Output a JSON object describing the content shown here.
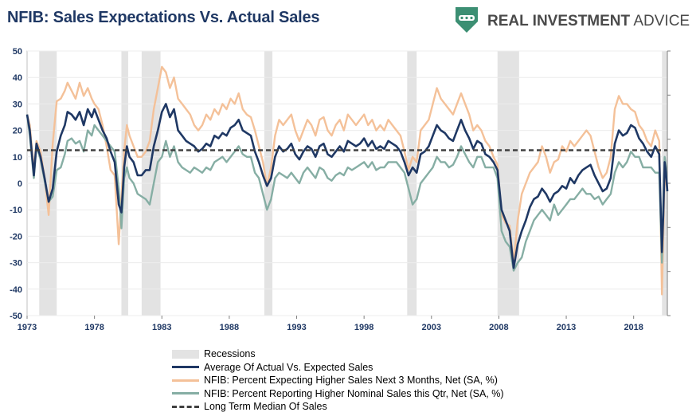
{
  "header": {
    "title": "NFIB: Sales Expectations Vs. Actual Sales",
    "brand_text": "REAL INVESTMENT ADVICE",
    "brand_color": "#3c8f73"
  },
  "chart_data": {
    "type": "line",
    "title": "NFIB: Sales Expectations Vs. Actual Sales",
    "xlabel": "",
    "ylabel": "",
    "xlim": [
      1973,
      2020.5
    ],
    "ylim": [
      -50,
      50
    ],
    "x_ticks": [
      "1973",
      "1978",
      "1983",
      "1988",
      "1993",
      "1998",
      "2003",
      "2008",
      "2013",
      "2018"
    ],
    "x_tick_values": [
      1973,
      1978,
      1983,
      1988,
      1993,
      1998,
      2003,
      2008,
      2013,
      2018
    ],
    "y_ticks": [
      "50",
      "40",
      "30",
      "20",
      "10",
      "0",
      "-10",
      "-20",
      "-30",
      "-40",
      "-50"
    ],
    "y_tick_values": [
      50,
      40,
      30,
      20,
      10,
      0,
      -10,
      -20,
      -30,
      -40,
      -50
    ],
    "grid": true,
    "legend_position": "bottom",
    "recessions": [
      [
        1973.9,
        1975.2
      ],
      [
        1980.0,
        1980.5
      ],
      [
        1981.5,
        1982.9
      ],
      [
        1990.6,
        1991.2
      ],
      [
        2001.2,
        2001.9
      ],
      [
        2007.9,
        2009.5
      ],
      [
        2020.1,
        2020.5
      ]
    ],
    "recessions_label": "Recessions",
    "median": {
      "name": "Long Term Median Of Sales",
      "value": 12.5
    },
    "series": [
      {
        "name": "Average Of Actual Vs. Expected Sales",
        "color": "#1f3864",
        "x": [
          1973.0,
          1973.2,
          1973.5,
          1973.7,
          1974.0,
          1974.3,
          1974.6,
          1974.9,
          1975.2,
          1975.5,
          1975.8,
          1976.0,
          1976.3,
          1976.6,
          1976.9,
          1977.2,
          1977.5,
          1977.8,
          1978.0,
          1978.3,
          1978.6,
          1978.9,
          1979.2,
          1979.5,
          1979.8,
          1980.0,
          1980.2,
          1980.4,
          1980.6,
          1980.9,
          1981.2,
          1981.5,
          1981.8,
          1982.1,
          1982.4,
          1982.7,
          1983.0,
          1983.3,
          1983.6,
          1983.9,
          1984.2,
          1984.5,
          1984.8,
          1985.1,
          1985.4,
          1985.7,
          1986.0,
          1986.3,
          1986.6,
          1986.9,
          1987.2,
          1987.5,
          1987.8,
          1988.1,
          1988.4,
          1988.7,
          1989.0,
          1989.3,
          1989.6,
          1989.9,
          1990.2,
          1990.5,
          1990.8,
          1991.1,
          1991.4,
          1991.7,
          1992.0,
          1992.3,
          1992.6,
          1992.9,
          1993.2,
          1993.5,
          1993.8,
          1994.1,
          1994.4,
          1994.7,
          1995.0,
          1995.3,
          1995.6,
          1995.9,
          1996.2,
          1996.5,
          1996.8,
          1997.1,
          1997.4,
          1997.7,
          1998.0,
          1998.3,
          1998.6,
          1998.9,
          1999.2,
          1999.5,
          1999.8,
          2000.1,
          2000.4,
          2000.7,
          2001.0,
          2001.3,
          2001.6,
          2001.9,
          2002.2,
          2002.5,
          2002.8,
          2003.1,
          2003.4,
          2003.7,
          2004.0,
          2004.3,
          2004.6,
          2004.9,
          2005.2,
          2005.5,
          2005.8,
          2006.1,
          2006.4,
          2006.7,
          2007.0,
          2007.3,
          2007.6,
          2007.9,
          2008.2,
          2008.5,
          2008.8,
          2009.1,
          2009.4,
          2009.7,
          2010.0,
          2010.3,
          2010.6,
          2010.9,
          2011.2,
          2011.5,
          2011.8,
          2012.1,
          2012.4,
          2012.7,
          2013.0,
          2013.3,
          2013.6,
          2013.9,
          2014.2,
          2014.5,
          2014.8,
          2015.1,
          2015.4,
          2015.7,
          2016.0,
          2016.3,
          2016.6,
          2016.9,
          2017.2,
          2017.5,
          2017.8,
          2018.1,
          2018.4,
          2018.7,
          2019.0,
          2019.3,
          2019.6,
          2019.9,
          2020.1,
          2020.2,
          2020.3,
          2020.4,
          2020.5
        ],
        "values": [
          26,
          20,
          3,
          15,
          10,
          2,
          -7,
          -2,
          12,
          18,
          22,
          27,
          26,
          24,
          27,
          22,
          28,
          25,
          28,
          24,
          20,
          17,
          12,
          8,
          -8,
          -11,
          6,
          14,
          10,
          8,
          3,
          3,
          5,
          5,
          14,
          20,
          27,
          30,
          25,
          28,
          20,
          18,
          16,
          15,
          14,
          12,
          13,
          15,
          14,
          18,
          17,
          19,
          18,
          21,
          22,
          24,
          20,
          19,
          18,
          12,
          8,
          3,
          -1,
          2,
          10,
          14,
          12,
          13,
          15,
          11,
          9,
          12,
          14,
          13,
          10,
          14,
          15,
          11,
          10,
          12,
          14,
          12,
          16,
          15,
          14,
          15,
          17,
          14,
          16,
          13,
          14,
          13,
          16,
          15,
          14,
          12,
          8,
          3,
          6,
          4,
          11,
          12,
          14,
          18,
          22,
          20,
          19,
          17,
          16,
          20,
          24,
          20,
          17,
          13,
          16,
          15,
          11,
          10,
          8,
          5,
          -10,
          -14,
          -18,
          -32,
          -23,
          -18,
          -14,
          -9,
          -6,
          -5,
          -2,
          -4,
          -7,
          -4,
          -3,
          -1,
          -2,
          2,
          0,
          3,
          5,
          6,
          7,
          3,
          0,
          -3,
          -2,
          2,
          15,
          20,
          18,
          19,
          22,
          21,
          17,
          15,
          12,
          10,
          14,
          11,
          -26,
          -12,
          8,
          4,
          -3
        ]
      },
      {
        "name": "NFIB: Percent Expecting Higher Sales Next 3 Months, Net (SA, %)",
        "color": "#f4c199",
        "x": [
          1973.0,
          1973.2,
          1973.5,
          1973.7,
          1974.0,
          1974.3,
          1974.6,
          1974.9,
          1975.2,
          1975.5,
          1975.8,
          1976.0,
          1976.3,
          1976.6,
          1976.9,
          1977.2,
          1977.5,
          1977.8,
          1978.0,
          1978.3,
          1978.6,
          1978.9,
          1979.2,
          1979.5,
          1979.8,
          1980.0,
          1980.2,
          1980.4,
          1980.6,
          1980.9,
          1981.2,
          1981.5,
          1981.8,
          1982.1,
          1982.4,
          1982.7,
          1983.0,
          1983.3,
          1983.6,
          1983.9,
          1984.2,
          1984.5,
          1984.8,
          1985.1,
          1985.4,
          1985.7,
          1986.0,
          1986.3,
          1986.6,
          1986.9,
          1987.2,
          1987.5,
          1987.8,
          1988.1,
          1988.4,
          1988.7,
          1989.0,
          1989.3,
          1989.6,
          1989.9,
          1990.2,
          1990.5,
          1990.8,
          1991.1,
          1991.4,
          1991.7,
          1992.0,
          1992.3,
          1992.6,
          1992.9,
          1993.2,
          1993.5,
          1993.8,
          1994.1,
          1994.4,
          1994.7,
          1995.0,
          1995.3,
          1995.6,
          1995.9,
          1996.2,
          1996.5,
          1996.8,
          1997.1,
          1997.4,
          1997.7,
          1998.0,
          1998.3,
          1998.6,
          1998.9,
          1999.2,
          1999.5,
          1999.8,
          2000.1,
          2000.4,
          2000.7,
          2001.0,
          2001.3,
          2001.6,
          2001.9,
          2002.2,
          2002.5,
          2002.8,
          2003.1,
          2003.4,
          2003.7,
          2004.0,
          2004.3,
          2004.6,
          2004.9,
          2005.2,
          2005.5,
          2005.8,
          2006.1,
          2006.4,
          2006.7,
          2007.0,
          2007.3,
          2007.6,
          2007.9,
          2008.2,
          2008.5,
          2008.8,
          2009.1,
          2009.4,
          2009.7,
          2010.0,
          2010.3,
          2010.6,
          2010.9,
          2011.2,
          2011.5,
          2011.8,
          2012.1,
          2012.4,
          2012.7,
          2013.0,
          2013.3,
          2013.6,
          2013.9,
          2014.2,
          2014.5,
          2014.8,
          2015.1,
          2015.4,
          2015.7,
          2016.0,
          2016.3,
          2016.6,
          2016.9,
          2017.2,
          2017.5,
          2017.8,
          2018.1,
          2018.4,
          2018.7,
          2019.0,
          2019.3,
          2019.6,
          2019.9,
          2020.1,
          2020.2,
          2020.3,
          2020.4,
          2020.5
        ],
        "values": [
          26,
          22,
          5,
          16,
          12,
          2,
          -12,
          15,
          31,
          32,
          35,
          38,
          35,
          32,
          38,
          33,
          36,
          32,
          30,
          28,
          22,
          14,
          5,
          3,
          -23,
          -5,
          12,
          22,
          18,
          14,
          10,
          10,
          12,
          16,
          28,
          36,
          44,
          42,
          36,
          40,
          32,
          30,
          28,
          26,
          22,
          20,
          22,
          26,
          24,
          28,
          26,
          30,
          28,
          32,
          30,
          34,
          28,
          26,
          25,
          20,
          14,
          8,
          -1,
          6,
          18,
          24,
          22,
          24,
          26,
          20,
          16,
          20,
          24,
          22,
          18,
          24,
          25,
          20,
          18,
          22,
          24,
          20,
          26,
          24,
          22,
          24,
          26,
          22,
          24,
          20,
          22,
          20,
          24,
          22,
          20,
          18,
          12,
          5,
          10,
          8,
          20,
          22,
          24,
          30,
          36,
          32,
          30,
          28,
          26,
          30,
          34,
          30,
          26,
          20,
          22,
          20,
          16,
          14,
          10,
          7,
          -12,
          -15,
          -16,
          -30,
          -14,
          -4,
          0,
          4,
          6,
          8,
          14,
          10,
          4,
          8,
          9,
          14,
          12,
          16,
          14,
          16,
          18,
          20,
          18,
          12,
          6,
          2,
          4,
          10,
          28,
          33,
          30,
          30,
          28,
          27,
          22,
          20,
          16,
          14,
          20,
          16,
          -42,
          -20,
          6,
          0,
          -2
        ]
      },
      {
        "name": "NFIB: Percent Reporting Higher Nominal Sales this Qtr, Net (SA, %)",
        "color": "#86aea4",
        "x": [
          1973.0,
          1973.2,
          1973.5,
          1973.7,
          1974.0,
          1974.3,
          1974.6,
          1974.9,
          1975.2,
          1975.5,
          1975.8,
          1976.0,
          1976.3,
          1976.6,
          1976.9,
          1977.2,
          1977.5,
          1977.8,
          1978.0,
          1978.3,
          1978.6,
          1978.9,
          1979.2,
          1979.5,
          1979.8,
          1980.0,
          1980.2,
          1980.4,
          1980.6,
          1980.9,
          1981.2,
          1981.5,
          1981.8,
          1982.1,
          1982.4,
          1982.7,
          1983.0,
          1983.3,
          1983.6,
          1983.9,
          1984.2,
          1984.5,
          1984.8,
          1985.1,
          1985.4,
          1985.7,
          1986.0,
          1986.3,
          1986.6,
          1986.9,
          1987.2,
          1987.5,
          1987.8,
          1988.1,
          1988.4,
          1988.7,
          1989.0,
          1989.3,
          1989.6,
          1989.9,
          1990.2,
          1990.5,
          1990.8,
          1991.1,
          1991.4,
          1991.7,
          1992.0,
          1992.3,
          1992.6,
          1992.9,
          1993.2,
          1993.5,
          1993.8,
          1994.1,
          1994.4,
          1994.7,
          1995.0,
          1995.3,
          1995.6,
          1995.9,
          1996.2,
          1996.5,
          1996.8,
          1997.1,
          1997.4,
          1997.7,
          1998.0,
          1998.3,
          1998.6,
          1998.9,
          1999.2,
          1999.5,
          1999.8,
          2000.1,
          2000.4,
          2000.7,
          2001.0,
          2001.3,
          2001.6,
          2001.9,
          2002.2,
          2002.5,
          2002.8,
          2003.1,
          2003.4,
          2003.7,
          2004.0,
          2004.3,
          2004.6,
          2004.9,
          2005.2,
          2005.5,
          2005.8,
          2006.1,
          2006.4,
          2006.7,
          2007.0,
          2007.3,
          2007.6,
          2007.9,
          2008.2,
          2008.5,
          2008.8,
          2009.1,
          2009.4,
          2009.7,
          2010.0,
          2010.3,
          2010.6,
          2010.9,
          2011.2,
          2011.5,
          2011.8,
          2012.1,
          2012.4,
          2012.7,
          2013.0,
          2013.3,
          2013.6,
          2013.9,
          2014.2,
          2014.5,
          2014.8,
          2015.1,
          2015.4,
          2015.7,
          2016.0,
          2016.3,
          2016.6,
          2016.9,
          2017.2,
          2017.5,
          2017.8,
          2018.1,
          2018.4,
          2018.7,
          2019.0,
          2019.3,
          2019.6,
          2019.9,
          2020.1,
          2020.2,
          2020.3,
          2020.4,
          2020.5
        ],
        "values": [
          26,
          18,
          2,
          14,
          9,
          1,
          -7,
          -5,
          5,
          6,
          11,
          16,
          17,
          15,
          16,
          12,
          20,
          18,
          22,
          20,
          18,
          16,
          14,
          12,
          -2,
          -17,
          2,
          6,
          2,
          0,
          -4,
          -5,
          -6,
          -8,
          0,
          8,
          10,
          16,
          10,
          14,
          8,
          6,
          5,
          4,
          6,
          5,
          4,
          6,
          5,
          8,
          9,
          10,
          8,
          10,
          12,
          14,
          11,
          10,
          10,
          4,
          2,
          -4,
          -10,
          -6,
          2,
          4,
          3,
          2,
          4,
          2,
          0,
          4,
          6,
          4,
          2,
          6,
          5,
          2,
          1,
          3,
          4,
          3,
          6,
          5,
          6,
          7,
          8,
          6,
          8,
          5,
          6,
          6,
          8,
          8,
          8,
          6,
          4,
          -2,
          -8,
          -6,
          0,
          2,
          4,
          6,
          10,
          8,
          8,
          6,
          7,
          10,
          14,
          11,
          8,
          6,
          10,
          10,
          6,
          6,
          6,
          2,
          -18,
          -22,
          -24,
          -33,
          -30,
          -28,
          -22,
          -18,
          -14,
          -12,
          -10,
          -12,
          -14,
          -8,
          -12,
          -10,
          -8,
          -6,
          -6,
          -4,
          -2,
          -4,
          -4,
          -6,
          -5,
          -8,
          -6,
          -4,
          4,
          8,
          6,
          8,
          12,
          10,
          10,
          6,
          6,
          6,
          4,
          4,
          -30,
          -8,
          10,
          6,
          -3
        ]
      }
    ]
  }
}
